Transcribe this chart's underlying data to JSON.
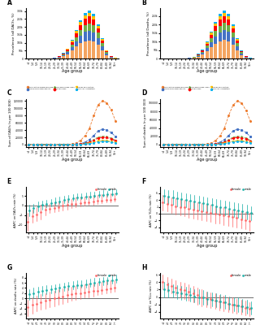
{
  "age_groups": [
    "<1",
    "1-4",
    "5-9",
    "10-14",
    "15-19",
    "20-24",
    "25-29",
    "30-34",
    "35-39",
    "40-44",
    "45-49",
    "50-54",
    "55-59",
    "60-64",
    "65-69",
    "70-74",
    "75-79",
    "80-84",
    "85-89",
    "90-94",
    "95+"
  ],
  "bar_colors": {
    "high_fasting_plasma_glucose": "#F4A460",
    "low_bone_mineral_density": "#4472C4",
    "high_body_mass_index": "#70AD47",
    "dietary_risks": "#FF0000",
    "kidney_dysfunction": "#FFC000",
    "high_ldl_cholesterol": "#00B0F0"
  },
  "A_stacked": {
    "high_fasting_plasma_glucose": [
      200,
      400,
      300,
      350,
      500,
      1000,
      2500,
      6000,
      14000,
      28000,
      50000,
      75000,
      95000,
      110000,
      115000,
      108000,
      85000,
      52000,
      22000,
      7000,
      1200
    ],
    "low_bone_mineral_density": [
      50,
      100,
      80,
      100,
      200,
      500,
      1200,
      3000,
      6500,
      12000,
      22000,
      35000,
      48000,
      58000,
      62000,
      58000,
      45000,
      27000,
      11000,
      3500,
      600
    ],
    "high_body_mass_index": [
      30,
      60,
      50,
      70,
      150,
      350,
      900,
      2000,
      4500,
      8500,
      16000,
      26000,
      36000,
      43000,
      46000,
      42000,
      32000,
      18000,
      7000,
      2200,
      380
    ],
    "dietary_risks": [
      60,
      120,
      90,
      110,
      170,
      380,
      900,
      2000,
      4500,
      8000,
      15000,
      24000,
      33000,
      40000,
      42000,
      38000,
      28000,
      16000,
      6200,
      1900,
      330
    ],
    "kidney_dysfunction": [
      25,
      50,
      40,
      50,
      80,
      180,
      450,
      1000,
      2200,
      4000,
      7500,
      12000,
      17000,
      20000,
      21000,
      19000,
      14000,
      8000,
      3000,
      950,
      160
    ],
    "high_ldl_cholesterol": [
      20,
      40,
      30,
      40,
      65,
      145,
      360,
      800,
      1800,
      3200,
      6000,
      9500,
      13500,
      16000,
      17000,
      15500,
      11500,
      6500,
      2400,
      750,
      130
    ]
  },
  "B_stacked": {
    "high_fasting_plasma_glucose": [
      100,
      200,
      150,
      200,
      300,
      700,
      1800,
      4500,
      11000,
      22000,
      42000,
      65000,
      85000,
      100000,
      108000,
      102000,
      80000,
      48000,
      20000,
      6200,
      1000
    ],
    "low_bone_mineral_density": [
      30,
      60,
      50,
      70,
      150,
      400,
      1000,
      2500,
      5500,
      10500,
      19000,
      31000,
      44000,
      54000,
      58000,
      54000,
      42000,
      25000,
      10000,
      3200,
      550
    ],
    "high_body_mass_index": [
      20,
      45,
      35,
      55,
      120,
      300,
      750,
      1700,
      3800,
      7200,
      14000,
      23000,
      32000,
      39000,
      42000,
      39000,
      30000,
      17000,
      6500,
      2000,
      350
    ],
    "dietary_risks": [
      45,
      90,
      70,
      90,
      140,
      320,
      750,
      1700,
      3800,
      6800,
      13000,
      21000,
      29000,
      36000,
      39000,
      35000,
      26000,
      15000,
      5700,
      1750,
      300
    ],
    "kidney_dysfunction": [
      18,
      38,
      30,
      40,
      65,
      150,
      380,
      850,
      1900,
      3400,
      6500,
      10500,
      15000,
      18500,
      19500,
      17500,
      13000,
      7500,
      2800,
      870,
      148
    ],
    "high_ldl_cholesterol": [
      15,
      30,
      22,
      32,
      52,
      122,
      300,
      680,
      1500,
      2700,
      5200,
      8300,
      12000,
      14500,
      15500,
      14000,
      10500,
      6000,
      2200,
      690,
      118
    ]
  },
  "line_colors": {
    "high_fasting_plasma_glucose": "#ED7D31",
    "low_bone_mineral_density": "#4472C4",
    "high_body_mass_index": "#70AD47",
    "dietary_risks": "#FF0000",
    "kidney_dysfunction": "#FFC000",
    "high_ldl_cholesterol": "#00B0F0"
  },
  "line_styles": {
    "high_fasting_plasma_glucose": "--",
    "low_bone_mineral_density": "--",
    "high_body_mass_index": "--",
    "dietary_risks": "--",
    "kidney_dysfunction": "--",
    "high_ldl_cholesterol": "--"
  },
  "line_markers": {
    "high_fasting_plasma_glucose": "o",
    "low_bone_mineral_density": "s",
    "high_body_mass_index": "^",
    "dietary_risks": "D",
    "kidney_dysfunction": "v",
    "high_ldl_cholesterol": "p"
  },
  "C_lines": {
    "high_fasting_plasma_glucose": [
      5,
      5,
      5,
      5,
      5,
      8,
      15,
      50,
      180,
      600,
      1800,
      5000,
      12000,
      25000,
      45000,
      80000,
      110000,
      120000,
      115000,
      95000,
      65000
    ],
    "low_bone_mineral_density": [
      2,
      2,
      2,
      2,
      2,
      3,
      6,
      15,
      50,
      150,
      450,
      1200,
      3000,
      7000,
      14000,
      25000,
      38000,
      42000,
      40000,
      33000,
      22000
    ],
    "high_body_mass_index": [
      1,
      1,
      1,
      1,
      1,
      2,
      4,
      10,
      28,
      80,
      220,
      600,
      1500,
      3500,
      7500,
      14000,
      21000,
      23000,
      22000,
      18000,
      12000
    ],
    "dietary_risks": [
      1,
      1,
      1,
      1,
      1,
      2,
      4,
      10,
      28,
      75,
      200,
      520,
      1300,
      3000,
      6500,
      12000,
      18000,
      20000,
      19000,
      15000,
      10000
    ],
    "kidney_dysfunction": [
      0.5,
      0.5,
      0.5,
      0.5,
      0.5,
      1,
      2,
      5,
      14,
      38,
      100,
      270,
      680,
      1600,
      3500,
      6500,
      10000,
      11500,
      11000,
      9000,
      6000
    ],
    "high_ldl_cholesterol": [
      0.3,
      0.3,
      0.3,
      0.3,
      0.3,
      0.8,
      1.5,
      4,
      11,
      30,
      80,
      210,
      540,
      1250,
      2700,
      5000,
      7700,
      8800,
      8400,
      6900,
      4600
    ]
  },
  "D_lines": {
    "high_fasting_plasma_glucose": [
      3,
      3,
      3,
      3,
      3,
      6,
      12,
      40,
      140,
      480,
      1500,
      4200,
      10000,
      21000,
      39000,
      70000,
      95000,
      105000,
      100000,
      82000,
      56000
    ],
    "low_bone_mineral_density": [
      1,
      1,
      1,
      1,
      1,
      2,
      5,
      12,
      40,
      125,
      380,
      1000,
      2600,
      6000,
      12000,
      22000,
      33000,
      37000,
      35000,
      29000,
      19000
    ],
    "high_body_mass_index": [
      0.8,
      0.8,
      0.8,
      0.8,
      0.8,
      1.5,
      3.5,
      8,
      22,
      65,
      185,
      500,
      1250,
      3000,
      6500,
      12000,
      18000,
      20000,
      19000,
      16000,
      10500
    ],
    "dietary_risks": [
      0.8,
      0.8,
      0.8,
      0.8,
      0.8,
      1.5,
      3.2,
      8,
      22,
      62,
      165,
      440,
      1100,
      2600,
      5600,
      10400,
      15600,
      17400,
      16500,
      13000,
      8700
    ],
    "kidney_dysfunction": [
      0.3,
      0.3,
      0.3,
      0.3,
      0.3,
      0.8,
      1.6,
      4,
      11,
      32,
      84,
      230,
      580,
      1380,
      3000,
      5600,
      8700,
      10000,
      9500,
      7800,
      5200
    ],
    "high_ldl_cholesterol": [
      0.2,
      0.2,
      0.2,
      0.2,
      0.2,
      0.6,
      1.2,
      3.2,
      9,
      25,
      67,
      178,
      455,
      1075,
      2330,
      4340,
      6700,
      7650,
      7300,
      6000,
      4000
    ]
  },
  "E_female": [
    -8.5,
    -5.5,
    -4.5,
    -3.5,
    -2.2,
    -1.8,
    -1.2,
    -0.8,
    -0.2,
    0.3,
    0.8,
    1.0,
    1.3,
    1.6,
    1.8,
    2.0,
    2.3,
    2.6,
    2.8,
    3.0,
    3.3
  ],
  "E_female_low": [
    -13,
    -9,
    -8,
    -7,
    -5,
    -4,
    -3.5,
    -3,
    -2.5,
    -2,
    -1.5,
    -1,
    -0.5,
    -0.2,
    0.2,
    0.5,
    0.8,
    1.2,
    1.5,
    1.7,
    2.0
  ],
  "E_female_high": [
    -4,
    -2,
    -1,
    0.5,
    0.5,
    1.0,
    1.5,
    2.0,
    2.5,
    3.0,
    3.5,
    4.0,
    4.5,
    4.8,
    5.0,
    5.3,
    5.5,
    5.8,
    6.0,
    6.2,
    6.5
  ],
  "E_male": [
    -2.5,
    -1.5,
    -0.5,
    0.3,
    0.8,
    1.3,
    1.8,
    2.2,
    2.8,
    3.3,
    3.8,
    4.0,
    4.3,
    4.6,
    4.8,
    5.0,
    5.3,
    5.6,
    5.8,
    6.0,
    6.3
  ],
  "E_male_low": [
    -5.5,
    -4,
    -3,
    -2,
    -1,
    -0.3,
    0.3,
    0.8,
    1.3,
    1.8,
    2.3,
    2.8,
    3.2,
    3.5,
    3.8,
    4.0,
    4.3,
    4.6,
    4.8,
    5.0,
    5.3
  ],
  "E_male_high": [
    0.5,
    1.0,
    2.0,
    2.5,
    3.0,
    3.5,
    4.0,
    4.5,
    5.0,
    5.5,
    6.0,
    6.2,
    6.5,
    6.8,
    7.0,
    7.2,
    7.5,
    7.8,
    8.0,
    8.2,
    8.5
  ],
  "F_female": [
    3.2,
    2.8,
    2.5,
    2.2,
    2.0,
    1.8,
    1.5,
    1.2,
    1.0,
    0.8,
    0.5,
    0.2,
    0.0,
    -0.2,
    -0.5,
    -0.8,
    -1.0,
    -1.3,
    -1.6,
    -1.9,
    -2.2
  ],
  "F_female_low": [
    1.0,
    0.6,
    0.2,
    -0.2,
    -0.5,
    -0.8,
    -1.2,
    -1.5,
    -1.8,
    -2.0,
    -2.3,
    -2.5,
    -2.8,
    -3.0,
    -3.3,
    -3.5,
    -3.8,
    -4.0,
    -4.3,
    -4.6,
    -5.0
  ],
  "F_female_high": [
    5.5,
    5.0,
    4.8,
    4.5,
    4.2,
    4.0,
    3.8,
    3.5,
    3.2,
    3.0,
    2.8,
    2.5,
    2.2,
    2.0,
    1.8,
    1.5,
    1.2,
    1.0,
    0.8,
    0.5,
    0.2
  ],
  "F_male": [
    5.2,
    5.0,
    4.8,
    4.5,
    4.2,
    4.0,
    3.8,
    3.5,
    3.2,
    3.0,
    2.8,
    2.5,
    2.2,
    2.0,
    1.8,
    1.5,
    1.2,
    1.0,
    0.8,
    0.5,
    0.2
  ],
  "F_male_low": [
    3.0,
    2.8,
    2.5,
    2.2,
    2.0,
    1.8,
    1.5,
    1.2,
    1.0,
    0.8,
    0.5,
    0.2,
    0.0,
    -0.2,
    -0.5,
    -0.8,
    -1.0,
    -1.2,
    -1.5,
    -1.8,
    -2.0
  ],
  "F_male_high": [
    7.2,
    7.0,
    6.8,
    6.5,
    6.2,
    6.0,
    5.8,
    5.5,
    5.2,
    5.0,
    4.8,
    4.5,
    4.2,
    4.0,
    3.8,
    3.5,
    3.2,
    3.0,
    2.8,
    2.5,
    2.2
  ],
  "G_female": [
    -3.5,
    -2.5,
    -2.0,
    -1.5,
    -1.0,
    -0.5,
    0.0,
    0.5,
    0.8,
    1.2,
    1.5,
    1.8,
    2.0,
    2.3,
    2.6,
    2.8,
    3.0,
    3.3,
    3.6,
    3.8,
    4.0
  ],
  "G_female_low": [
    -7,
    -6,
    -5,
    -4.5,
    -4,
    -3.5,
    -3,
    -2.5,
    -2,
    -1.5,
    -1,
    -0.5,
    -0.2,
    0.2,
    0.5,
    0.8,
    1.2,
    1.5,
    1.8,
    2.2,
    2.5
  ],
  "G_female_high": [
    -0.5,
    0.5,
    1.0,
    1.5,
    2.0,
    2.5,
    3.0,
    3.5,
    3.8,
    4.2,
    4.5,
    4.8,
    5.0,
    5.3,
    5.6,
    5.8,
    6.0,
    6.3,
    6.6,
    6.8,
    7.0
  ],
  "G_male": [
    1.5,
    2.0,
    2.5,
    2.8,
    3.2,
    3.5,
    3.8,
    4.0,
    4.3,
    4.6,
    4.8,
    5.0,
    5.2,
    5.5,
    5.8,
    6.0,
    6.2,
    6.5,
    6.8,
    7.0,
    7.3
  ],
  "G_male_low": [
    -0.5,
    0.0,
    0.5,
    1.0,
    1.5,
    1.8,
    2.2,
    2.5,
    2.8,
    3.2,
    3.5,
    3.8,
    4.0,
    4.2,
    4.5,
    4.8,
    5.0,
    5.2,
    5.5,
    5.8,
    6.0
  ],
  "G_male_high": [
    3.5,
    4.0,
    4.5,
    4.8,
    5.0,
    5.2,
    5.5,
    5.8,
    6.0,
    6.2,
    6.5,
    6.8,
    7.0,
    7.2,
    7.5,
    7.8,
    8.0,
    8.2,
    8.5,
    8.8,
    9.0
  ],
  "H_female": [
    4.0,
    3.5,
    3.0,
    2.5,
    2.2,
    1.8,
    1.5,
    1.0,
    0.5,
    0.0,
    -0.3,
    -0.6,
    -0.9,
    -1.2,
    -1.5,
    -1.8,
    -2.0,
    -2.3,
    -2.6,
    -2.9,
    -3.2
  ],
  "H_female_low": [
    2.0,
    1.5,
    1.0,
    0.5,
    0.0,
    -0.5,
    -1.0,
    -1.5,
    -2.0,
    -2.5,
    -2.8,
    -3.0,
    -3.3,
    -3.6,
    -3.8,
    -4.0,
    -4.3,
    -4.6,
    -4.8,
    -5.0,
    -5.3
  ],
  "H_female_high": [
    6.0,
    5.5,
    5.0,
    4.5,
    4.2,
    3.8,
    3.5,
    3.0,
    2.5,
    2.0,
    1.5,
    1.2,
    0.9,
    0.6,
    0.3,
    0.0,
    -0.2,
    -0.5,
    -0.8,
    -1.1,
    -1.4
  ],
  "H_male": [
    2.0,
    1.8,
    1.5,
    1.2,
    1.0,
    0.8,
    0.5,
    0.2,
    0.0,
    -0.2,
    -0.5,
    -0.8,
    -1.0,
    -1.2,
    -1.5,
    -1.8,
    -2.0,
    -2.3,
    -2.6,
    -2.8,
    -3.0
  ],
  "H_male_low": [
    0.0,
    0.0,
    -0.2,
    -0.5,
    -0.8,
    -1.0,
    -1.2,
    -1.5,
    -1.8,
    -2.0,
    -2.2,
    -2.5,
    -2.8,
    -3.0,
    -3.2,
    -3.5,
    -3.8,
    -4.0,
    -4.2,
    -4.5,
    -4.8
  ],
  "H_male_high": [
    4.0,
    3.8,
    3.5,
    3.2,
    3.0,
    2.8,
    2.5,
    2.2,
    2.0,
    1.8,
    1.5,
    1.2,
    1.0,
    0.8,
    0.5,
    0.2,
    0.0,
    -0.2,
    -0.5,
    -0.8,
    -1.2
  ],
  "female_color": "#FF6B6B",
  "male_color": "#20B2AA",
  "bar_legend_labels": [
    "High fasting plasma glucose",
    "Low bone mineral density",
    "High body mass index",
    "Dietary risks",
    "Kidney dysfunction",
    "High LDL cholesterol"
  ],
  "bar_legend_keys": [
    "high_fasting_plasma_glucose",
    "low_bone_mineral_density",
    "high_body_mass_index",
    "dietary_risks",
    "kidney_dysfunction",
    "high_ldl_cholesterol"
  ],
  "line_legend_labels": [
    "High fasting plasma glucose",
    "Low bone mineral density",
    "High body mass index",
    "Dietary risks",
    "Kidney dysfunction",
    "High LDL cholesterol"
  ],
  "line_legend_keys": [
    "high_fasting_plasma_glucose",
    "low_bone_mineral_density",
    "high_body_mass_index",
    "dietary_risks",
    "kidney_dysfunction",
    "high_ldl_cholesterol"
  ]
}
